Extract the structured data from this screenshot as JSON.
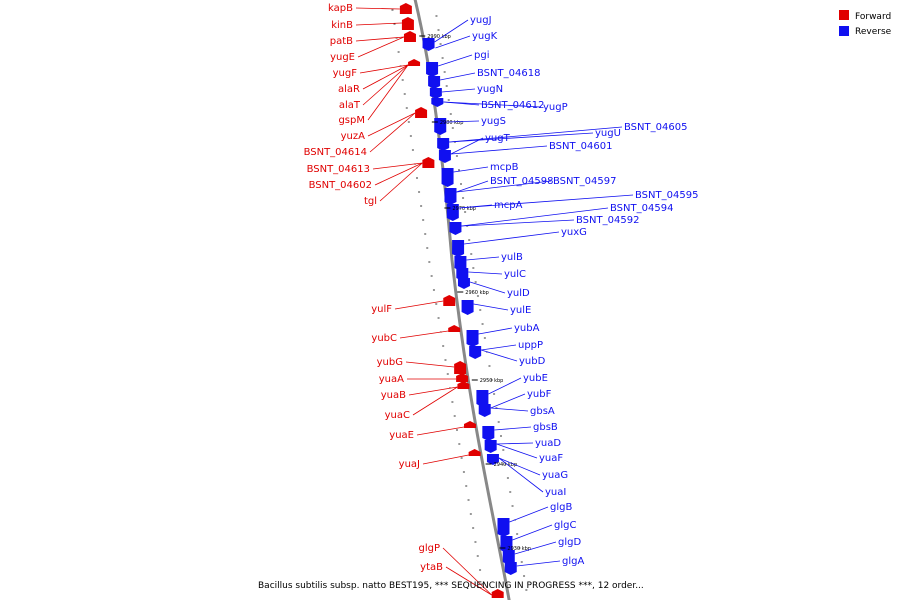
{
  "legend": {
    "forward": {
      "label": "Forward",
      "color": "#e00000"
    },
    "reverse": {
      "label": "Reverse",
      "color": "#1010f0"
    }
  },
  "caption": "Bacillus subtilis subsp. natto BEST195, *** SEQUENCING IN PROGRESS ***, 12 order...",
  "ticks": [
    "2990 kbp",
    "2980 kbp",
    "2970 kbp",
    "2960 kbp",
    "2950 kbp",
    "2940 kbp",
    "2930 kbp"
  ],
  "forward_genes": [
    "kapB",
    "kinB",
    "patB",
    "yugE",
    "yugF",
    "alaR",
    "alaT",
    "gspM",
    "yuzA",
    "BSNT_04614",
    "BSNT_04613",
    "BSNT_04602",
    "tgl",
    "yulF",
    "yubC",
    "yubG",
    "yuaA",
    "yuaB",
    "yuaC",
    "yuaE",
    "yuaJ",
    "glgP",
    "ytaB"
  ],
  "reverse_genes": [
    "yugJ",
    "yugK",
    "pgi",
    "BSNT_04618",
    "yugN",
    "BSNT_04612",
    "yugP",
    "yugS",
    "yugU",
    "BSNT_04605",
    "yugT",
    "BSNT_04601",
    "mcpB",
    "BSNT_04598",
    "BSNT_04597",
    "mcpA",
    "BSNT_04595",
    "BSNT_04594",
    "BSNT_04592",
    "yuxG",
    "yulB",
    "yulC",
    "yulD",
    "yulE",
    "yubA",
    "uppP",
    "yubD",
    "yubE",
    "yubF",
    "gbsA",
    "gbsB",
    "yuaD",
    "yuaF",
    "yuaG",
    "yuaI",
    "glgB",
    "glgC",
    "glgD",
    "glgA"
  ]
}
